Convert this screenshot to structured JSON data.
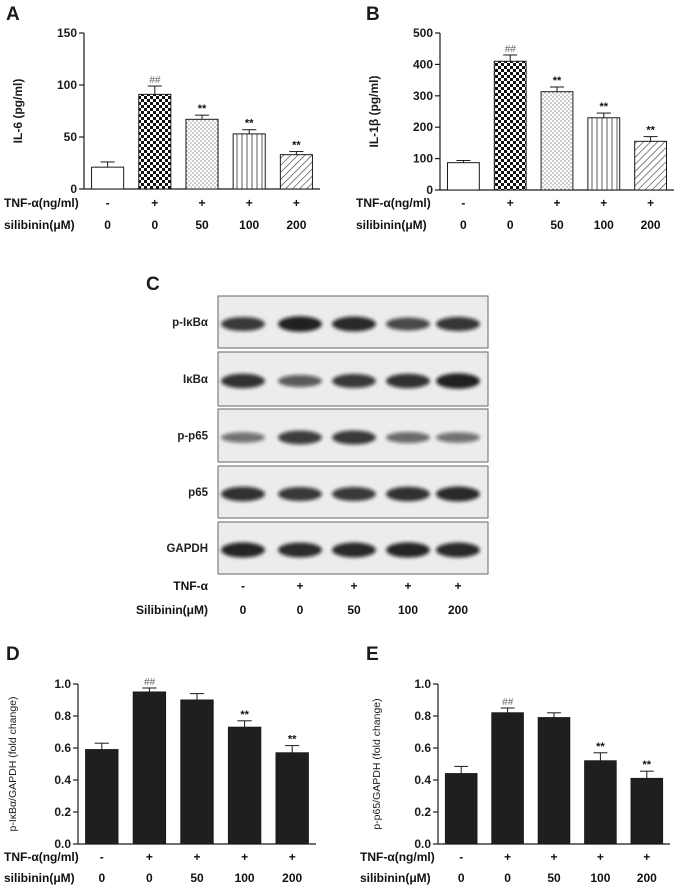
{
  "panels": {
    "A": "A",
    "B": "B",
    "C": "C",
    "D": "D",
    "E": "E"
  },
  "chart_data": [
    {
      "id": "A",
      "type": "bar",
      "ylabel": "IL-6 (pg/ml)",
      "ylim": [
        0,
        150
      ],
      "yticks": [
        "0",
        "50",
        "100",
        "150"
      ],
      "values": [
        21,
        91,
        67,
        53,
        33
      ],
      "errors": [
        5,
        8,
        4,
        4,
        3
      ],
      "patterns": [
        "white",
        "checker",
        "dots",
        "vlines",
        "diag"
      ],
      "annotations": [
        "",
        "##",
        "**",
        "**",
        "**"
      ],
      "conditions": [
        {
          "label": "TNF-α(ng/ml)",
          "values": [
            "-",
            "+",
            "+",
            "+",
            "+"
          ]
        },
        {
          "label": "silibinin(μM)",
          "values": [
            "0",
            "0",
            "50",
            "100",
            "200"
          ]
        }
      ]
    },
    {
      "id": "B",
      "type": "bar",
      "ylabel": "IL-1β (pg/ml)",
      "ylim": [
        0,
        500
      ],
      "yticks": [
        "0",
        "100",
        "200",
        "300",
        "400",
        "500"
      ],
      "values": [
        87,
        410,
        313,
        230,
        155
      ],
      "errors": [
        7,
        20,
        15,
        15,
        15
      ],
      "patterns": [
        "white",
        "checker",
        "dots",
        "vlines",
        "diag"
      ],
      "annotations": [
        "",
        "##",
        "**",
        "**",
        "**"
      ],
      "conditions": [
        {
          "label": "TNF-α(ng/ml)",
          "values": [
            "-",
            "+",
            "+",
            "+",
            "+"
          ]
        },
        {
          "label": "silibinin(μM)",
          "values": [
            "0",
            "0",
            "50",
            "100",
            "200"
          ]
        }
      ]
    },
    {
      "id": "D",
      "type": "bar",
      "ylabel": "p-IκBα/GAPDH (fold change)",
      "ylim": [
        0,
        1.0
      ],
      "yticks": [
        "0.0",
        "0.2",
        "0.4",
        "0.6",
        "0.8",
        "1.0"
      ],
      "values": [
        0.59,
        0.95,
        0.9,
        0.73,
        0.57
      ],
      "errors": [
        0.04,
        0.025,
        0.04,
        0.04,
        0.045
      ],
      "patterns": [
        "solid",
        "solid",
        "solid",
        "solid",
        "solid"
      ],
      "annotations": [
        "",
        "##",
        "",
        "**",
        "**"
      ],
      "conditions": [
        {
          "label": "TNF-α(ng/ml)",
          "values": [
            "-",
            "+",
            "+",
            "+",
            "+"
          ]
        },
        {
          "label": "silibinin(μM)",
          "values": [
            "0",
            "0",
            "50",
            "100",
            "200"
          ]
        }
      ]
    },
    {
      "id": "E",
      "type": "bar",
      "ylabel": "p-p65/GAPDH (fold change)",
      "ylim": [
        0,
        1.0
      ],
      "yticks": [
        "0.0",
        "0.2",
        "0.4",
        "0.6",
        "0.8",
        "1.0"
      ],
      "values": [
        0.44,
        0.82,
        0.79,
        0.52,
        0.41
      ],
      "errors": [
        0.045,
        0.03,
        0.03,
        0.05,
        0.045
      ],
      "patterns": [
        "solid",
        "solid",
        "solid",
        "solid",
        "solid"
      ],
      "annotations": [
        "",
        "##",
        "",
        "**",
        "**"
      ],
      "conditions": [
        {
          "label": "TNF-α(ng/ml)",
          "values": [
            "-",
            "+",
            "+",
            "+",
            "+"
          ]
        },
        {
          "label": "silibinin(μM)",
          "values": [
            "0",
            "0",
            "50",
            "100",
            "200"
          ]
        }
      ]
    }
  ],
  "western_blot": {
    "bands": [
      {
        "label": "p-IκBα",
        "intensity": [
          0.8,
          0.95,
          0.9,
          0.7,
          0.82
        ]
      },
      {
        "label": "IκBα",
        "intensity": [
          0.85,
          0.6,
          0.8,
          0.85,
          0.95
        ]
      },
      {
        "label": "p-p65",
        "intensity": [
          0.45,
          0.78,
          0.8,
          0.5,
          0.45
        ]
      },
      {
        "label": "p65",
        "intensity": [
          0.85,
          0.8,
          0.8,
          0.85,
          0.9
        ]
      },
      {
        "label": "GAPDH",
        "intensity": [
          0.92,
          0.88,
          0.9,
          0.92,
          0.9
        ]
      }
    ],
    "conditions": [
      {
        "label": "TNF-α",
        "values": [
          "-",
          "+",
          "+",
          "+",
          "+"
        ]
      },
      {
        "label": "Silibinin(μM)",
        "values": [
          "0",
          "0",
          "50",
          "100",
          "200"
        ]
      }
    ]
  },
  "colors": {
    "bar_solid": "#1f1f1f",
    "axis": "#1a1a1a",
    "blot_bg": "#ececec",
    "band": "#111111"
  }
}
